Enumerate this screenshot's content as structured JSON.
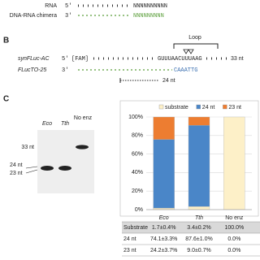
{
  "panel_a": {
    "rows": [
      {
        "label": "RNA",
        "end": "5'",
        "sequence": "NNNNNNNNNN"
      },
      {
        "label": "DNA-RNA chimera",
        "end": "3'",
        "sequence": "NNNNNNNNN"
      }
    ]
  },
  "panel_b": {
    "letter": "B",
    "loop": "Loop",
    "rows": [
      {
        "label": "synFLuc-AC",
        "end": "5'",
        "tag": "[FAM]",
        "sequence": "GUUUAACUUUAAG",
        "length": "33 nt"
      },
      {
        "label": "FLucTO-25",
        "end": "3'",
        "sequence": "CAAATTG"
      }
    ],
    "product": "24 nt"
  },
  "panel_c": {
    "letter": "C",
    "gel": {
      "lanes": [
        "Eco",
        "Tth",
        "No enz"
      ],
      "markers": [
        "33 nt",
        "24 nt",
        "23 nt"
      ]
    },
    "table": {
      "rows": [
        [
          "Substrate",
          "1.7±0.4%",
          "3.4±0.2%",
          "100.0%"
        ],
        [
          "24 nt",
          "74.1±3.3%",
          "87.6±1.0%",
          "0.0%"
        ],
        [
          "23 nt",
          "24.2±3.7%",
          "9.0±0.7%",
          "0.0%"
        ]
      ]
    }
  },
  "chart_data": {
    "type": "stacked-bar",
    "categories": [
      "Eco",
      "Tth",
      "No enz"
    ],
    "series": [
      {
        "name": "substrate",
        "color": "#fdf0c8",
        "values": [
          1.7,
          3.4,
          100
        ]
      },
      {
        "name": "24 nt",
        "color": "#4a86c8",
        "values": [
          74.1,
          87.6,
          0
        ]
      },
      {
        "name": "23 nt",
        "color": "#ed7d31",
        "values": [
          24.2,
          9.0,
          0
        ]
      }
    ],
    "ylim": [
      0,
      100
    ],
    "yticks": [
      {
        "value": 0,
        "label": "0%"
      },
      {
        "value": 20,
        "label": "20%"
      },
      {
        "value": 40,
        "label": "40%"
      },
      {
        "value": 60,
        "label": "60%"
      },
      {
        "value": 80,
        "label": "80%"
      },
      {
        "value": 100,
        "label": "100%"
      }
    ],
    "grid": true,
    "legend": "top"
  }
}
